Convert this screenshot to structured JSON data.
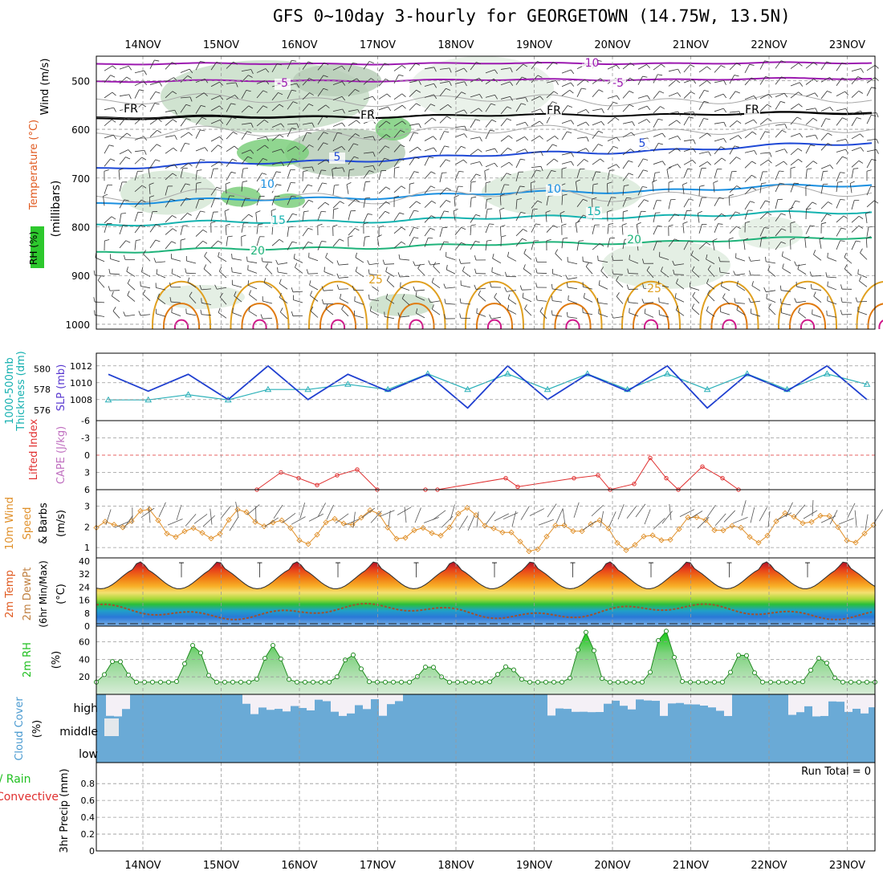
{
  "title": "GFS 0~10day 3-hourly for GEORGETOWN (14.75W, 13.5N)",
  "date_labels": [
    "14NOV",
    "15NOV",
    "16NOV",
    "17NOV",
    "18NOV",
    "19NOV",
    "20NOV",
    "21NOV",
    "22NOV",
    "23NOV"
  ],
  "run_total": "Run Total = 0",
  "panels": {
    "pressure": {
      "ylabels": [
        "Wind (m/s)",
        "Temperature (°C)",
        "RH (%)",
        "(millibars)"
      ],
      "ticks": [
        "500",
        "600",
        "700",
        "800",
        "900",
        "1000"
      ],
      "contour_labels": [
        {
          "text": "-10",
          "color": "#9c1ab0"
        },
        {
          "text": "-5",
          "color": "#9c1ab0"
        },
        {
          "text": "-5",
          "color": "#9c1ab0"
        },
        {
          "text": "FR",
          "color": "#000000"
        },
        {
          "text": "FR",
          "color": "#000000"
        },
        {
          "text": "FR",
          "color": "#000000"
        },
        {
          "text": "FR",
          "color": "#000000"
        },
        {
          "text": "5",
          "color": "#1f49d6"
        },
        {
          "text": "5",
          "color": "#1f49d6"
        },
        {
          "text": "10",
          "color": "#1a8fe0"
        },
        {
          "text": "10",
          "color": "#1a8fe0"
        },
        {
          "text": "15",
          "color": "#15b3b0"
        },
        {
          "text": "15",
          "color": "#15b3b0"
        },
        {
          "text": "20",
          "color": "#1fb37a"
        },
        {
          "text": "20",
          "color": "#1fb37a"
        },
        {
          "text": "25",
          "color": "#e0a020"
        },
        {
          "text": "25",
          "color": "#e0a020"
        }
      ]
    },
    "slp": {
      "label_a": "1000-500mb",
      "label_b": "Thickness (dm)",
      "label_c": "SLP (mb)",
      "left_ticks": [
        "580",
        "578",
        "576"
      ],
      "right_ticks": [
        "1012",
        "1010",
        "1008"
      ]
    },
    "cape": {
      "label_a": "Lifted Index",
      "label_b": "CAPE (J/kg)",
      "ticks": [
        "-6",
        "-3",
        "0",
        "3",
        "6"
      ]
    },
    "wind10": {
      "label_a": "10m Wind",
      "label_b": "Speed",
      "label_c": "& Barbs",
      "label_d": "(m/s)",
      "ticks": [
        "3",
        "2",
        "1"
      ]
    },
    "temp": {
      "label_a": "2m Temp",
      "label_b": "2m DewPt",
      "label_c": "(6hr Min/Max)",
      "label_d": "(°C)",
      "ticks": [
        "40",
        "32",
        "24",
        "16",
        "8",
        "0"
      ]
    },
    "rh": {
      "label_a": "2m RH",
      "label_b": "(%)",
      "ticks": [
        "60",
        "40",
        "20"
      ]
    },
    "cloud": {
      "label_a": "Cloud Cover",
      "label_b": "(%)",
      "levels": [
        "high",
        "middle",
        "low"
      ]
    },
    "precip": {
      "label_a": "Total / Rain",
      "label_b": "Convective",
      "label_c": "3hr Precip (mm)",
      "ticks": [
        "0.8",
        "0.6",
        "0.4",
        "0.2",
        "0"
      ]
    }
  },
  "colors": {
    "dewpoint_dash": "#a0522d",
    "rh_green": "#1fbf1f",
    "cloud_blue": "#6aaad6",
    "slp_line": "#1f3fd0",
    "thickness_line": "#2ab0b8",
    "wind_line": "#e0902a",
    "cape_line": "#e03030"
  },
  "chart_data": {
    "type": "line",
    "x": [
      "14NOV 00Z",
      "14NOV 12Z",
      "15NOV 00Z",
      "15NOV 12Z",
      "16NOV 00Z",
      "16NOV 12Z",
      "17NOV 00Z",
      "17NOV 12Z",
      "18NOV 00Z",
      "18NOV 12Z",
      "19NOV 00Z",
      "19NOV 12Z",
      "20NOV 00Z",
      "20NOV 12Z",
      "21NOV 00Z",
      "21NOV 12Z",
      "22NOV 00Z",
      "22NOV 12Z",
      "23NOV 00Z",
      "23NOV 12Z"
    ],
    "series": [
      {
        "name": "SLP (mb)",
        "values": [
          1011,
          1009,
          1011,
          1008,
          1012,
          1008,
          1011,
          1009,
          1011,
          1007,
          1012,
          1008,
          1011,
          1009,
          1012,
          1007,
          1011,
          1009,
          1012,
          1008
        ]
      },
      {
        "name": "1000-500mb Thickness (dm)",
        "values": [
          577,
          577,
          577.5,
          577,
          578,
          578,
          578.5,
          578,
          579.5,
          578,
          579.5,
          578,
          579.5,
          578,
          579.5,
          578,
          579.5,
          578,
          579.5,
          578.5
        ]
      },
      {
        "name": "2m Temp max/min (°C)",
        "values": [
          35,
          23,
          36,
          23,
          36,
          23,
          36,
          23,
          37,
          24,
          38,
          24,
          38,
          24,
          37,
          24,
          37,
          24,
          37,
          23
        ]
      },
      {
        "name": "2m DewPt (°C)",
        "values": [
          5,
          9,
          8,
          10,
          14,
          12,
          11,
          10,
          10,
          11,
          10,
          11,
          12,
          15,
          8,
          16,
          12,
          10,
          5,
          4
        ]
      },
      {
        "name": "2m RH (%)",
        "values": [
          12,
          40,
          14,
          57,
          16,
          56,
          16,
          46,
          14,
          33,
          14,
          32,
          14,
          71,
          14,
          74,
          14,
          48,
          12,
          42
        ]
      },
      {
        "name": "10m Wind Speed (m/s)",
        "values": [
          2.0,
          2.0,
          2.0,
          2.0,
          2.5,
          2.5,
          2.5,
          2.8,
          2.3,
          2.0,
          1.5,
          2.0,
          1.5,
          2.5,
          1.5,
          2.0,
          1.5,
          1.8,
          1.5,
          1.8
        ]
      }
    ],
    "ylim_slp": [
      1006,
      1013
    ],
    "ylim_thickness": [
      575,
      581
    ],
    "ylim_temp": [
      0,
      40
    ],
    "ylim_rh": [
      0,
      75
    ],
    "ylim_wind": [
      0.5,
      3.8
    ],
    "ylim_cape_li": [
      -6,
      6
    ],
    "ylim_precip": [
      0,
      1
    ],
    "precip_total_mm": 0,
    "cloud_cover": {
      "high": "mostly",
      "middle": "overcast",
      "low": "overcast"
    },
    "grid": true,
    "legend": "left side labels"
  }
}
